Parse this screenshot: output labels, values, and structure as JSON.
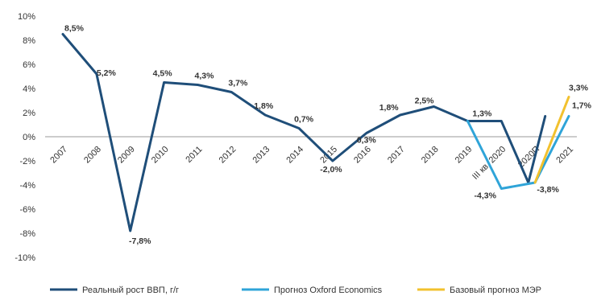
{
  "chart_data": {
    "type": "line",
    "categories": [
      "2007",
      "2008",
      "2009",
      "2010",
      "2011",
      "2012",
      "2013",
      "2014",
      "2015",
      "2016",
      "2017",
      "2018",
      "2019",
      "III кв. 2020",
      "2020П",
      "2021"
    ],
    "yticks": [
      "10%",
      "8%",
      "6%",
      "4%",
      "2%",
      "0%",
      "-2%",
      "-4%",
      "-6%",
      "-8%",
      "-10%"
    ],
    "ylim": [
      -10,
      10
    ],
    "grid": false,
    "legend_position": "bottom",
    "series": [
      {
        "name": "Реальный рост ВВП, г/г",
        "color": "#1f4e79",
        "points": [
          {
            "x": 0,
            "y": 8.5
          },
          {
            "x": 1,
            "y": 5.2
          },
          {
            "x": 2,
            "y": -7.8
          },
          {
            "x": 3,
            "y": 4.5
          },
          {
            "x": 4,
            "y": 4.3
          },
          {
            "x": 5,
            "y": 3.7
          },
          {
            "x": 6,
            "y": 1.8
          },
          {
            "x": 7,
            "y": 0.7
          },
          {
            "x": 8,
            "y": -2.0
          },
          {
            "x": 9,
            "y": 0.3
          },
          {
            "x": 10,
            "y": 1.8
          },
          {
            "x": 11,
            "y": 2.5
          },
          {
            "x": 12,
            "y": 1.3
          },
          {
            "x": 13.0,
            "y": 1.3
          },
          {
            "x": 13.8,
            "y": -3.8
          },
          {
            "x": 14.3,
            "y": 1.7
          }
        ]
      },
      {
        "name": "Прогноз Oxford Economics",
        "color": "#2fa4d8",
        "points": [
          {
            "x": 12,
            "y": 1.3
          },
          {
            "x": 13,
            "y": -4.3
          },
          {
            "x": 14,
            "y": -3.8
          },
          {
            "x": 15,
            "y": 1.7
          }
        ]
      },
      {
        "name": "Базовый прогноз МЭР",
        "color": "#f2c12e",
        "points": [
          {
            "x": 14,
            "y": -3.8
          },
          {
            "x": 15,
            "y": 3.3
          }
        ]
      }
    ],
    "data_labels": [
      {
        "text": "8,5%",
        "x": 0,
        "y": 8.5
      },
      {
        "text": "5,2%",
        "x": 1,
        "y": 5.2
      },
      {
        "text": "-7,8%",
        "x": 2,
        "y": -7.8
      },
      {
        "text": "4,5%",
        "x": 3,
        "y": 4.5
      },
      {
        "text": "4,3%",
        "x": 4,
        "y": 4.3
      },
      {
        "text": "3,7%",
        "x": 5,
        "y": 3.7
      },
      {
        "text": "1,8%",
        "x": 6,
        "y": 1.8
      },
      {
        "text": "0,7%",
        "x": 7,
        "y": 0.7
      },
      {
        "text": "-2,0%",
        "x": 8,
        "y": -2.0
      },
      {
        "text": "0,3%",
        "x": 9,
        "y": 0.3
      },
      {
        "text": "1,8%",
        "x": 10,
        "y": 1.8
      },
      {
        "text": "2,5%",
        "x": 11,
        "y": 2.5
      },
      {
        "text": "1,3%",
        "x": 12,
        "y": 1.3
      },
      {
        "text": "-4,3%",
        "x": 13,
        "y": -4.3
      },
      {
        "text": "-3,8%",
        "x": 14,
        "y": -3.8
      },
      {
        "text": "3,3%",
        "x": 15,
        "y": 3.3
      },
      {
        "text": "1,7%",
        "x": 15,
        "y": 1.7
      }
    ]
  }
}
